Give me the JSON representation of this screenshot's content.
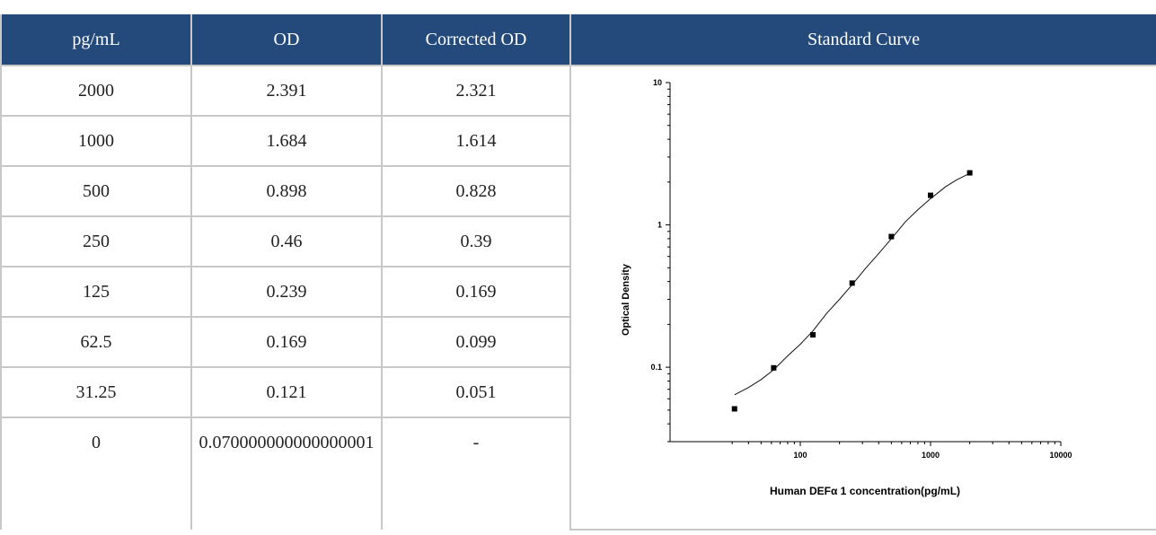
{
  "table": {
    "headers": [
      "pg/mL",
      "OD",
      "Corrected OD",
      "Standard Curve"
    ],
    "rows": [
      [
        "2000",
        "2.391",
        "2.321"
      ],
      [
        "1000",
        "1.684",
        "1.614"
      ],
      [
        "500",
        "0.898",
        "0.828"
      ],
      [
        "250",
        "0.46",
        "0.39"
      ],
      [
        "125",
        "0.239",
        "0.169"
      ],
      [
        "62.5",
        "0.169",
        "0.099"
      ],
      [
        "31.25",
        "0.121",
        "0.051"
      ],
      [
        "0",
        "0.070000000000000001",
        "-"
      ]
    ]
  },
  "colors": {
    "header_bg": "#234a7b",
    "header_text": "#ffffff",
    "grid": "#c8c8c8"
  },
  "chart_data": {
    "type": "scatter",
    "xlabel": "Human DEFα 1 concentration(pg/mL)",
    "ylabel": "Optical Density",
    "x_scale": "log",
    "y_scale": "log",
    "xlim": [
      10,
      10000
    ],
    "ylim": [
      0.01,
      10
    ],
    "x_ticks": [
      "100",
      "1000",
      "10000"
    ],
    "y_ticks": [
      "10",
      "1",
      "0.1"
    ],
    "series": [
      {
        "x": [
          31.25,
          62.5,
          125,
          250,
          500,
          1000,
          2000
        ],
        "y": [
          0.051,
          0.099,
          0.169,
          0.39,
          0.828,
          1.614,
          2.321
        ]
      }
    ],
    "fit_curve": {
      "x": [
        31.25,
        40,
        50,
        62.5,
        80,
        100,
        125,
        160,
        200,
        250,
        320,
        400,
        500,
        640,
        800,
        1000,
        1300,
        1600,
        2000
      ],
      "y": [
        0.064,
        0.072,
        0.082,
        0.096,
        0.12,
        0.145,
        0.18,
        0.24,
        0.3,
        0.38,
        0.5,
        0.63,
        0.8,
        1.05,
        1.28,
        1.53,
        1.85,
        2.08,
        2.3
      ]
    },
    "grid": false
  }
}
